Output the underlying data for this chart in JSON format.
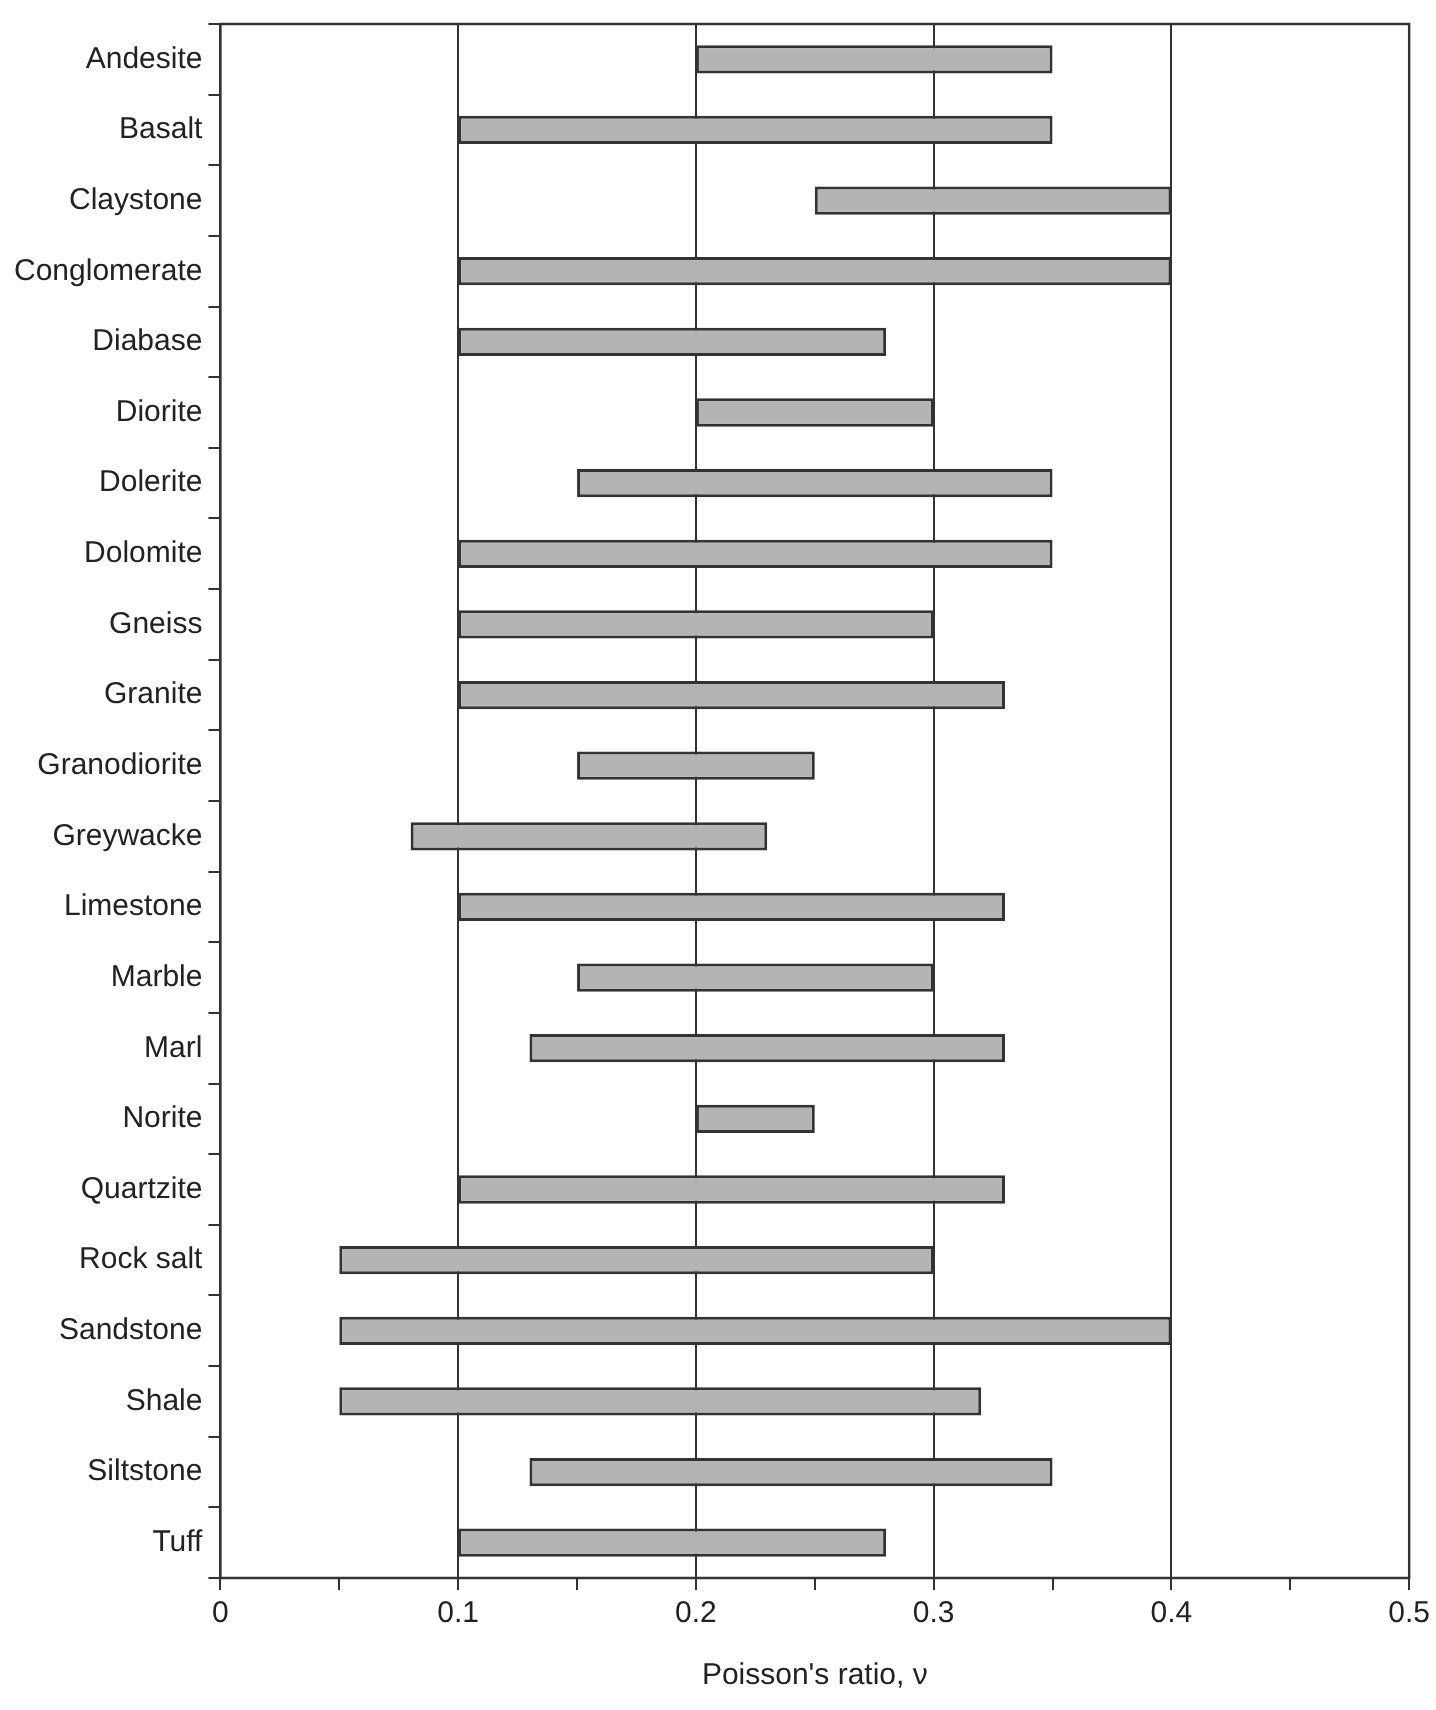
{
  "chart_data": {
    "type": "bar",
    "orientation": "horizontal",
    "xlabel": "Poisson's ratio, ν",
    "categories": [
      "Andesite",
      "Basalt",
      "Claystone",
      "Conglomerate",
      "Diabase",
      "Diorite",
      "Dolerite",
      "Dolomite",
      "Gneiss",
      "Granite",
      "Granodiorite",
      "Greywacke",
      "Limestone",
      "Marble",
      "Marl",
      "Norite",
      "Quartzite",
      "Rock salt",
      "Sandstone",
      "Shale",
      "Siltstone",
      "Tuff"
    ],
    "base": [
      0.2,
      0.1,
      0.25,
      0.1,
      0.1,
      0.2,
      0.15,
      0.1,
      0.1,
      0.1,
      0.15,
      0.08,
      0.1,
      0.15,
      0.13,
      0.2,
      0.1,
      0.05,
      0.05,
      0.05,
      0.13,
      0.1
    ],
    "values": [
      0.15,
      0.25,
      0.15,
      0.3,
      0.18,
      0.1,
      0.2,
      0.25,
      0.2,
      0.23,
      0.1,
      0.15,
      0.23,
      0.15,
      0.2,
      0.05,
      0.23,
      0.25,
      0.35,
      0.27,
      0.22,
      0.18
    ],
    "color": "#b4b4b4",
    "xlim": [
      0,
      0.5
    ],
    "xticks": [
      0,
      {
        "value": 0.05,
        "label": null
      },
      0.1,
      {
        "value": 0.15,
        "label": null
      },
      0.2,
      {
        "value": 0.25,
        "label": null
      },
      0.3,
      {
        "value": 0.35,
        "label": null
      },
      0.4,
      {
        "value": 0.45,
        "label": null
      },
      0.5
    ],
    "grid": "x",
    "legend": false
  }
}
